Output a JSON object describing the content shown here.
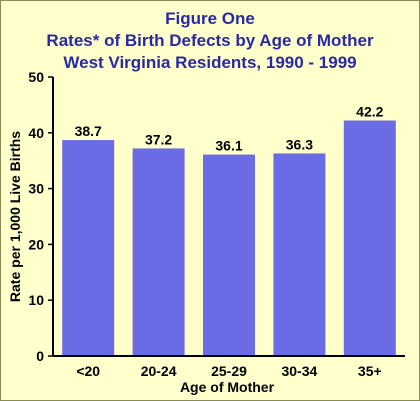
{
  "colors": {
    "background": "#ffffcc",
    "title": "#2929a8",
    "bar": "#6b6be6",
    "axis": "#000000"
  },
  "chart_data": {
    "type": "bar",
    "title": "Figure One",
    "subtitle": "Rates* of Birth Defects by Age of Mother",
    "subtitle2": "West Virginia Residents, 1990 - 1999",
    "xlabel": "Age of Mother",
    "ylabel": "Rate per 1,000 Live Births",
    "categories": [
      "<20",
      "20-24",
      "25-29",
      "30-34",
      "35+"
    ],
    "values": [
      38.7,
      37.2,
      36.1,
      36.3,
      42.2
    ],
    "value_labels": [
      "38.7",
      "37.2",
      "36.1",
      "36.3",
      "42.2"
    ],
    "ylim": [
      0,
      50
    ],
    "yticks": [
      0,
      10,
      20,
      30,
      40,
      50
    ],
    "grid": false,
    "legend": "none"
  }
}
